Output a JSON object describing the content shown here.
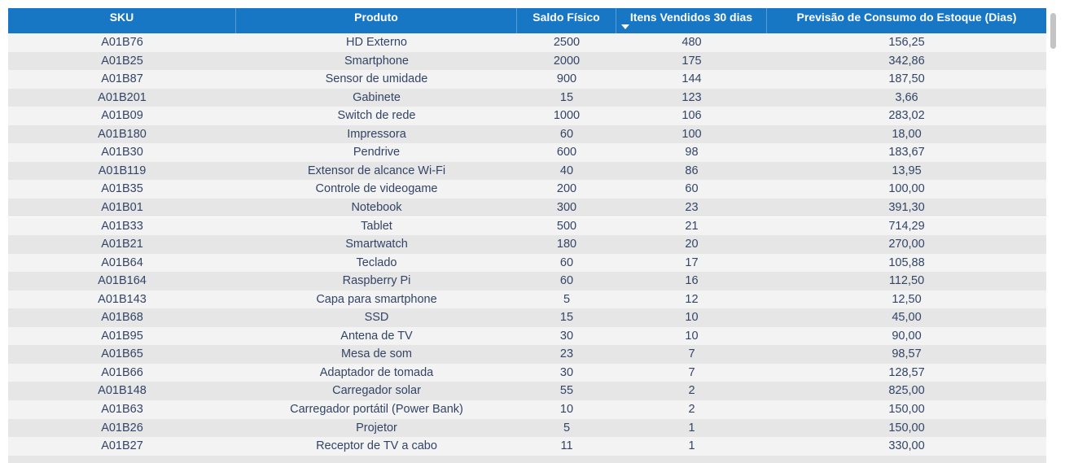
{
  "table": {
    "columns": [
      "SKU",
      "Produto",
      "Saldo Físico",
      "Itens Vendidos 30 dias",
      "Previsão de Consumo do Estoque (Dias)"
    ],
    "rows": [
      [
        "A01B76",
        "HD Externo",
        "2500",
        "480",
        "156,25"
      ],
      [
        "A01B25",
        "Smartphone",
        "2000",
        "175",
        "342,86"
      ],
      [
        "A01B87",
        "Sensor de umidade",
        "900",
        "144",
        "187,50"
      ],
      [
        "A01B201",
        "Gabinete",
        "15",
        "123",
        "3,66"
      ],
      [
        "A01B09",
        "Switch de rede",
        "1000",
        "106",
        "283,02"
      ],
      [
        "A01B180",
        "Impressora",
        "60",
        "100",
        "18,00"
      ],
      [
        "A01B30",
        "Pendrive",
        "600",
        "98",
        "183,67"
      ],
      [
        "A01B119",
        "Extensor de alcance Wi-Fi",
        "40",
        "86",
        "13,95"
      ],
      [
        "A01B35",
        "Controle de videogame",
        "200",
        "60",
        "100,00"
      ],
      [
        "A01B01",
        "Notebook",
        "300",
        "23",
        "391,30"
      ],
      [
        "A01B33",
        "Tablet",
        "500",
        "21",
        "714,29"
      ],
      [
        "A01B21",
        "Smartwatch",
        "180",
        "20",
        "270,00"
      ],
      [
        "A01B64",
        "Teclado",
        "60",
        "17",
        "105,88"
      ],
      [
        "A01B164",
        "Raspberry Pi",
        "60",
        "16",
        "112,50"
      ],
      [
        "A01B143",
        "Capa para smartphone",
        "5",
        "12",
        "12,50"
      ],
      [
        "A01B68",
        "SSD",
        "15",
        "10",
        "45,00"
      ],
      [
        "A01B95",
        "Antena de TV",
        "30",
        "10",
        "90,00"
      ],
      [
        "A01B65",
        "Mesa de som",
        "23",
        "7",
        "98,57"
      ],
      [
        "A01B66",
        "Adaptador de tomada",
        "30",
        "7",
        "128,57"
      ],
      [
        "A01B148",
        "Carregador solar",
        "55",
        "2",
        "825,00"
      ],
      [
        "A01B63",
        "Carregador portátil (Power Bank)",
        "10",
        "2",
        "150,00"
      ],
      [
        "A01B26",
        "Projetor",
        "5",
        "1",
        "150,00"
      ],
      [
        "A01B27",
        "Receptor de TV a cabo",
        "11",
        "1",
        "330,00"
      ]
    ]
  }
}
